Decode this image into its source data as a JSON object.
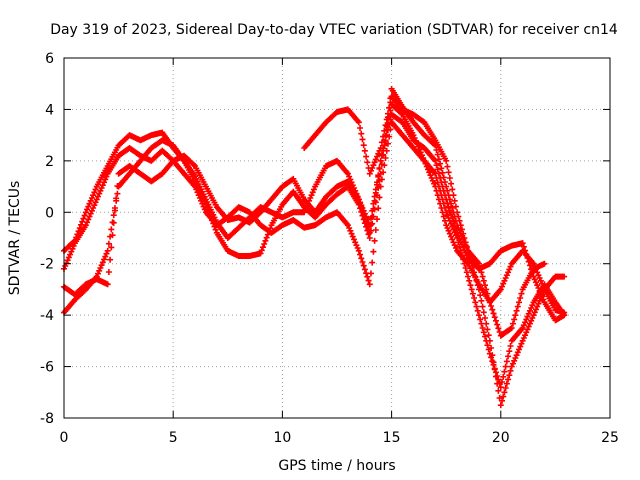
{
  "chart_data": {
    "type": "scatter",
    "title": "Day 319 of 2023, Sidereal Day-to-day VTEC variation (SDTVAR) for receiver cn14",
    "xlabel": "GPS time / hours",
    "ylabel": "SDTVAR / TECUs",
    "xlim": [
      0,
      25
    ],
    "ylim": [
      -8,
      6
    ],
    "xticks": [
      "0",
      "5",
      "10",
      "15",
      "20",
      "25"
    ],
    "yticks": [
      "-8",
      "-6",
      "-4",
      "-2",
      "0",
      "2",
      "4",
      "6"
    ],
    "grid": true,
    "marker": "+",
    "color": "#ff0000",
    "series": [
      {
        "x": [
          0.0,
          0.5,
          1.0,
          1.5,
          2.0,
          2.5,
          3.0,
          3.5,
          4.0,
          4.5,
          5.0,
          5.5,
          6.0,
          6.5,
          7.0,
          7.5,
          8.0,
          8.5,
          9.0,
          9.5,
          10.0,
          10.5,
          11.0,
          11.5,
          12.0,
          12.5,
          13.0,
          13.5,
          14.0,
          14.5,
          15.0,
          15.5,
          16.0,
          16.5,
          17.0,
          17.5,
          18.0,
          18.5,
          19.0,
          19.5,
          20.0,
          20.5,
          21.0,
          21.5,
          22.0,
          22.5,
          22.9
        ],
        "y": [
          -1.5,
          -1.1,
          0.0,
          1.0,
          1.8,
          2.6,
          3.0,
          2.8,
          3.0,
          3.1,
          2.5,
          2.0,
          1.2,
          0.3,
          -0.8,
          -1.5,
          -1.7,
          -1.7,
          -1.6,
          -0.5,
          0.3,
          0.8,
          0.2,
          -0.2,
          0.3,
          0.7,
          1.0,
          0.3,
          -1.0,
          1.5,
          4.8,
          4.1,
          3.5,
          3.0,
          2.6,
          1.0,
          -0.5,
          -1.5,
          -3.0,
          -5.0,
          -7.5,
          -6.0,
          -5.0,
          -4.0,
          -3.0,
          -2.5,
          -2.5
        ]
      },
      {
        "x": [
          0.0,
          0.5,
          1.0,
          1.5,
          2.0,
          2.5,
          3.0,
          3.5,
          4.0,
          4.5,
          5.0,
          5.5,
          6.0,
          6.5,
          7.0,
          7.5,
          8.0,
          8.5,
          9.0,
          9.5,
          10.0,
          10.5,
          11.0,
          11.5,
          12.0,
          12.5,
          13.0,
          13.5,
          14.0,
          14.5,
          15.0,
          15.5,
          16.0,
          16.5,
          17.0,
          17.5,
          18.0,
          18.5,
          19.0,
          19.5,
          20.0,
          20.5,
          21.0,
          21.5,
          22.0,
          22.5,
          22.9
        ],
        "y": [
          -2.2,
          -1.2,
          -0.5,
          0.5,
          1.5,
          2.2,
          2.5,
          2.2,
          2.0,
          2.4,
          2.0,
          1.5,
          1.0,
          0.0,
          -0.5,
          -0.2,
          0.2,
          0.0,
          -0.5,
          -0.8,
          -0.5,
          -0.3,
          -0.6,
          -0.5,
          -0.2,
          0.0,
          -0.5,
          -1.5,
          -2.8,
          1.0,
          3.5,
          3.0,
          2.5,
          2.0,
          1.5,
          0.0,
          -1.0,
          -2.5,
          -4.0,
          -5.5,
          -6.8,
          -5.0,
          -4.5,
          -3.5,
          -2.8,
          -3.5,
          -4.0
        ]
      },
      {
        "x": [
          0.0,
          0.5,
          1.0,
          1.5,
          2.0,
          2.5,
          3.0,
          3.5,
          4.0,
          4.5,
          5.0,
          5.5,
          6.0,
          6.5,
          7.0,
          7.5,
          8.0,
          8.5,
          9.0,
          9.5,
          10.0,
          10.5,
          11.0,
          11.5,
          12.0,
          12.5,
          13.0,
          13.5,
          14.0,
          14.5,
          15.0,
          15.5,
          16.0,
          16.5,
          17.0,
          17.5,
          18.0,
          18.5,
          19.0,
          19.5,
          20.0,
          20.5,
          21.0,
          21.5,
          22.0,
          22.5,
          22.9
        ],
        "y": [
          -2.9,
          -3.2,
          -2.8,
          -2.6,
          -2.8,
          1.5,
          1.8,
          1.5,
          1.2,
          1.5,
          2.0,
          2.2,
          1.8,
          1.0,
          0.2,
          -0.3,
          -0.2,
          -0.4,
          0.0,
          0.5,
          1.0,
          1.3,
          0.5,
          0.0,
          0.6,
          1.0,
          1.2,
          0.5,
          -0.5,
          2.0,
          4.2,
          3.8,
          3.0,
          2.0,
          1.0,
          -0.5,
          -1.5,
          -2.0,
          -2.8,
          -3.5,
          -3.0,
          -2.0,
          -1.5,
          -2.0,
          -3.0,
          -3.8,
          -3.9
        ]
      },
      {
        "x": [
          0.0,
          0.5,
          1.0,
          1.5,
          2.0,
          2.5,
          3.0,
          3.5,
          4.0,
          4.5,
          5.0,
          5.5,
          6.0,
          6.5,
          7.0,
          7.5,
          8.0,
          8.5,
          9.0,
          9.5,
          10.0,
          10.5,
          11.0,
          11.5,
          12.0,
          12.5,
          13.0,
          13.5,
          14.0,
          14.5,
          15.0,
          15.5,
          16.0,
          16.5,
          17.0,
          17.5,
          18.0,
          18.5,
          19.0,
          19.5,
          20.0,
          20.5,
          21.0,
          21.5,
          22.0,
          22.5,
          22.9
        ],
        "y": [
          -3.9,
          -3.4,
          -3.0,
          -2.5,
          -1.5,
          1.0,
          1.5,
          2.0,
          2.5,
          2.8,
          2.6,
          2.0,
          1.4,
          0.5,
          -0.4,
          -1.0,
          -0.6,
          -0.2,
          0.2,
          0.0,
          -0.2,
          0.0,
          0.0,
          1.0,
          1.8,
          2.0,
          1.5,
          0.5,
          -0.8,
          2.0,
          3.8,
          3.5,
          2.8,
          2.5,
          2.0,
          0.5,
          -0.8,
          -1.8,
          -2.2,
          -2.0,
          -1.5,
          -1.3,
          -1.2,
          -2.5,
          -3.5,
          -4.2,
          -4.0
        ]
      },
      {
        "x": [
          11.0,
          11.5,
          12.0,
          12.5,
          13.0,
          13.5,
          14.0,
          14.5,
          15.0,
          15.5,
          16.0,
          16.5,
          17.0,
          17.5,
          18.0,
          18.5,
          19.0,
          19.5,
          20.0,
          20.5,
          21.0,
          21.5,
          22.0
        ],
        "y": [
          2.5,
          3.0,
          3.5,
          3.9,
          4.0,
          3.5,
          1.5,
          2.5,
          4.5,
          4.0,
          3.8,
          3.5,
          2.8,
          2.0,
          0.0,
          -1.5,
          -2.0,
          -3.5,
          -4.8,
          -4.5,
          -3.0,
          -2.2,
          -2.0
        ]
      }
    ]
  }
}
